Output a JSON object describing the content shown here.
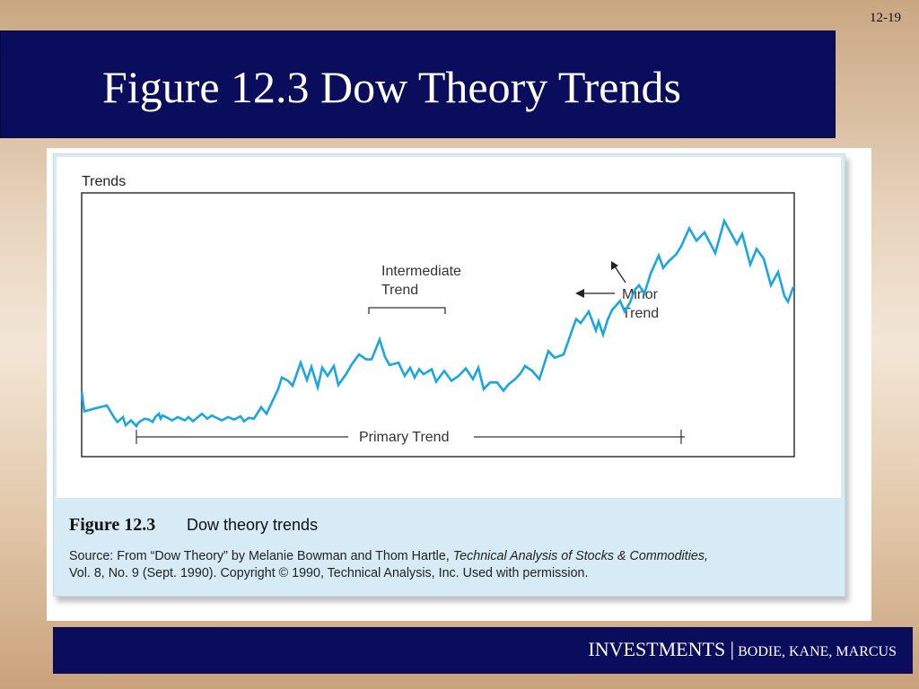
{
  "slide_number": "12-19",
  "title": "Figure 12.3 Dow Theory Trends",
  "figure": {
    "caption_title": "Figure 12.3",
    "caption_subtitle": "Dow theory trends",
    "source_prefix": "Source: From “Dow Theory” by Melanie Bowman and Thom Hartle, ",
    "source_italic": "Technical Analysis of Stocks & Commodities,",
    "source_suffix": "Vol. 8, No. 9 (Sept. 1990). Copyright © 1990, Technical Analysis, Inc. Used with permission."
  },
  "chart_data": {
    "type": "line",
    "title": "Trends",
    "xlabel": "",
    "ylabel": "",
    "annotations": {
      "intermediate_line1": "Intermediate",
      "intermediate_line2": "Trend",
      "minor_line1": "Minor",
      "minor_line2": "Trend",
      "primary": "Primary Trend"
    },
    "series": [
      {
        "color": "#1aa7e0",
        "x": [
          0,
          3,
          13,
          28,
          37,
          40,
          46,
          49,
          55,
          61,
          63,
          70,
          75,
          79,
          82,
          86,
          88,
          90,
          94,
          101,
          107,
          115,
          119,
          124,
          134,
          140,
          145,
          156,
          163,
          170,
          177,
          181,
          186,
          192,
          200,
          206,
          212,
          219,
          223,
          230,
          235,
          244,
          251,
          256,
          263,
          268,
          274,
          281,
          286,
          294,
          301,
          309,
          317,
          323,
          332,
          338,
          343,
          353,
          360,
          366,
          371,
          376,
          381,
          390,
          395,
          404,
          412,
          420,
          428,
          436,
          442,
          448,
          455,
          463,
          470,
          476,
          483,
          489,
          494,
          502,
          510,
          520,
          527,
          537,
          546,
          551,
          556,
          565,
          573,
          576,
          581,
          586,
          591,
          600,
          605,
          611,
          616,
          621,
          627,
          634,
          643,
          648,
          654,
          662,
          668,
          677,
          685,
          694,
          706,
          716,
          730,
          736,
          745,
          752,
          760,
          768,
          776,
          783,
          787,
          793
        ],
        "values": [
          79,
          55,
          58,
          62,
          46,
          42,
          48,
          38,
          44,
          37,
          41,
          46,
          45,
          42,
          48,
          52,
          46,
          50,
          48,
          44,
          48,
          44,
          48,
          43,
          52,
          46,
          50,
          44,
          48,
          45,
          49,
          43,
          47,
          46,
          60,
          52,
          66,
          82,
          96,
          92,
          86,
          114,
          93,
          109,
          84,
          108,
          98,
          110,
          87,
          99,
          112,
          124,
          118,
          118,
          142,
          121,
          111,
          114,
          98,
          108,
          96,
          106,
          100,
          106,
          91,
          104,
          92,
          98,
          107,
          94,
          108,
          82,
          90,
          90,
          80,
          88,
          94,
          101,
          110,
          104,
          94,
          128,
          120,
          124,
          152,
          167,
          162,
          176,
          153,
          164,
          148,
          166,
          178,
          189,
          176,
          187,
          202,
          208,
          198,
          222,
          244,
          229,
          237,
          245,
          255,
          277,
          262,
          272,
          247,
          286,
          258,
          270,
          233,
          252,
          240,
          208,
          224,
          195,
          188,
          206
        ]
      }
    ],
    "ylim": [
      0,
      320
    ]
  },
  "footer": {
    "main": "INVESTMENTS |",
    "authors": "BODIE, KANE, MARCUS"
  }
}
